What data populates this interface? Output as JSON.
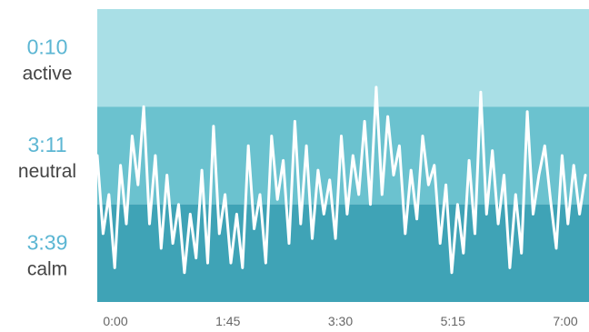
{
  "chart_data": {
    "type": "area",
    "zones": [
      {
        "time": "0:10",
        "label": "active",
        "color": "#a9dfe6"
      },
      {
        "time": "3:11",
        "label": "neutral",
        "color": "#6bc2cf"
      },
      {
        "time": "3:39",
        "label": "calm",
        "color": "#3fa3b6"
      }
    ],
    "x_ticks": [
      "0:00",
      "1:45",
      "3:30",
      "5:15",
      "7:00"
    ],
    "x_range_minutes": [
      0,
      420
    ],
    "y_range": [
      0,
      3
    ],
    "line_color": "#ffffff",
    "series": [
      {
        "x": [
          0,
          5,
          10,
          15,
          20,
          25,
          30,
          35,
          40,
          45,
          50,
          55,
          60,
          65,
          70,
          75,
          80,
          85,
          90,
          95,
          100,
          105,
          110,
          115,
          120,
          125,
          130,
          135,
          140,
          145,
          150,
          155,
          160,
          165,
          170,
          175,
          180,
          185,
          190,
          195,
          200,
          205,
          210,
          215,
          220,
          225,
          230,
          235,
          240,
          245,
          250,
          255,
          260,
          265,
          270,
          275,
          280,
          285,
          290,
          295,
          300,
          305,
          310,
          315,
          320,
          325,
          330,
          335,
          340,
          345,
          350,
          355,
          360,
          365,
          370,
          375,
          380,
          385,
          390,
          395,
          400,
          405,
          410,
          415,
          420
        ],
        "y": [
          1.5,
          0.7,
          1.1,
          0.35,
          1.4,
          0.8,
          1.7,
          1.2,
          2.0,
          0.8,
          1.5,
          0.55,
          1.3,
          0.6,
          1.0,
          0.3,
          0.9,
          0.45,
          1.35,
          0.4,
          1.8,
          0.7,
          1.1,
          0.4,
          0.9,
          0.35,
          1.6,
          0.75,
          1.1,
          0.4,
          1.7,
          1.05,
          1.45,
          0.6,
          1.85,
          0.8,
          1.6,
          0.65,
          1.35,
          0.9,
          1.25,
          0.65,
          1.7,
          0.9,
          1.5,
          1.1,
          1.85,
          1.0,
          2.2,
          1.1,
          1.9,
          1.3,
          1.6,
          0.7,
          1.35,
          0.85,
          1.7,
          1.2,
          1.4,
          0.6,
          1.2,
          0.3,
          1.0,
          0.5,
          1.45,
          0.7,
          2.15,
          0.9,
          1.55,
          0.8,
          1.3,
          0.35,
          1.1,
          0.5,
          1.95,
          0.9,
          1.3,
          1.6,
          1.05,
          0.55,
          1.5,
          0.8,
          1.4,
          0.9,
          1.3
        ]
      }
    ]
  }
}
